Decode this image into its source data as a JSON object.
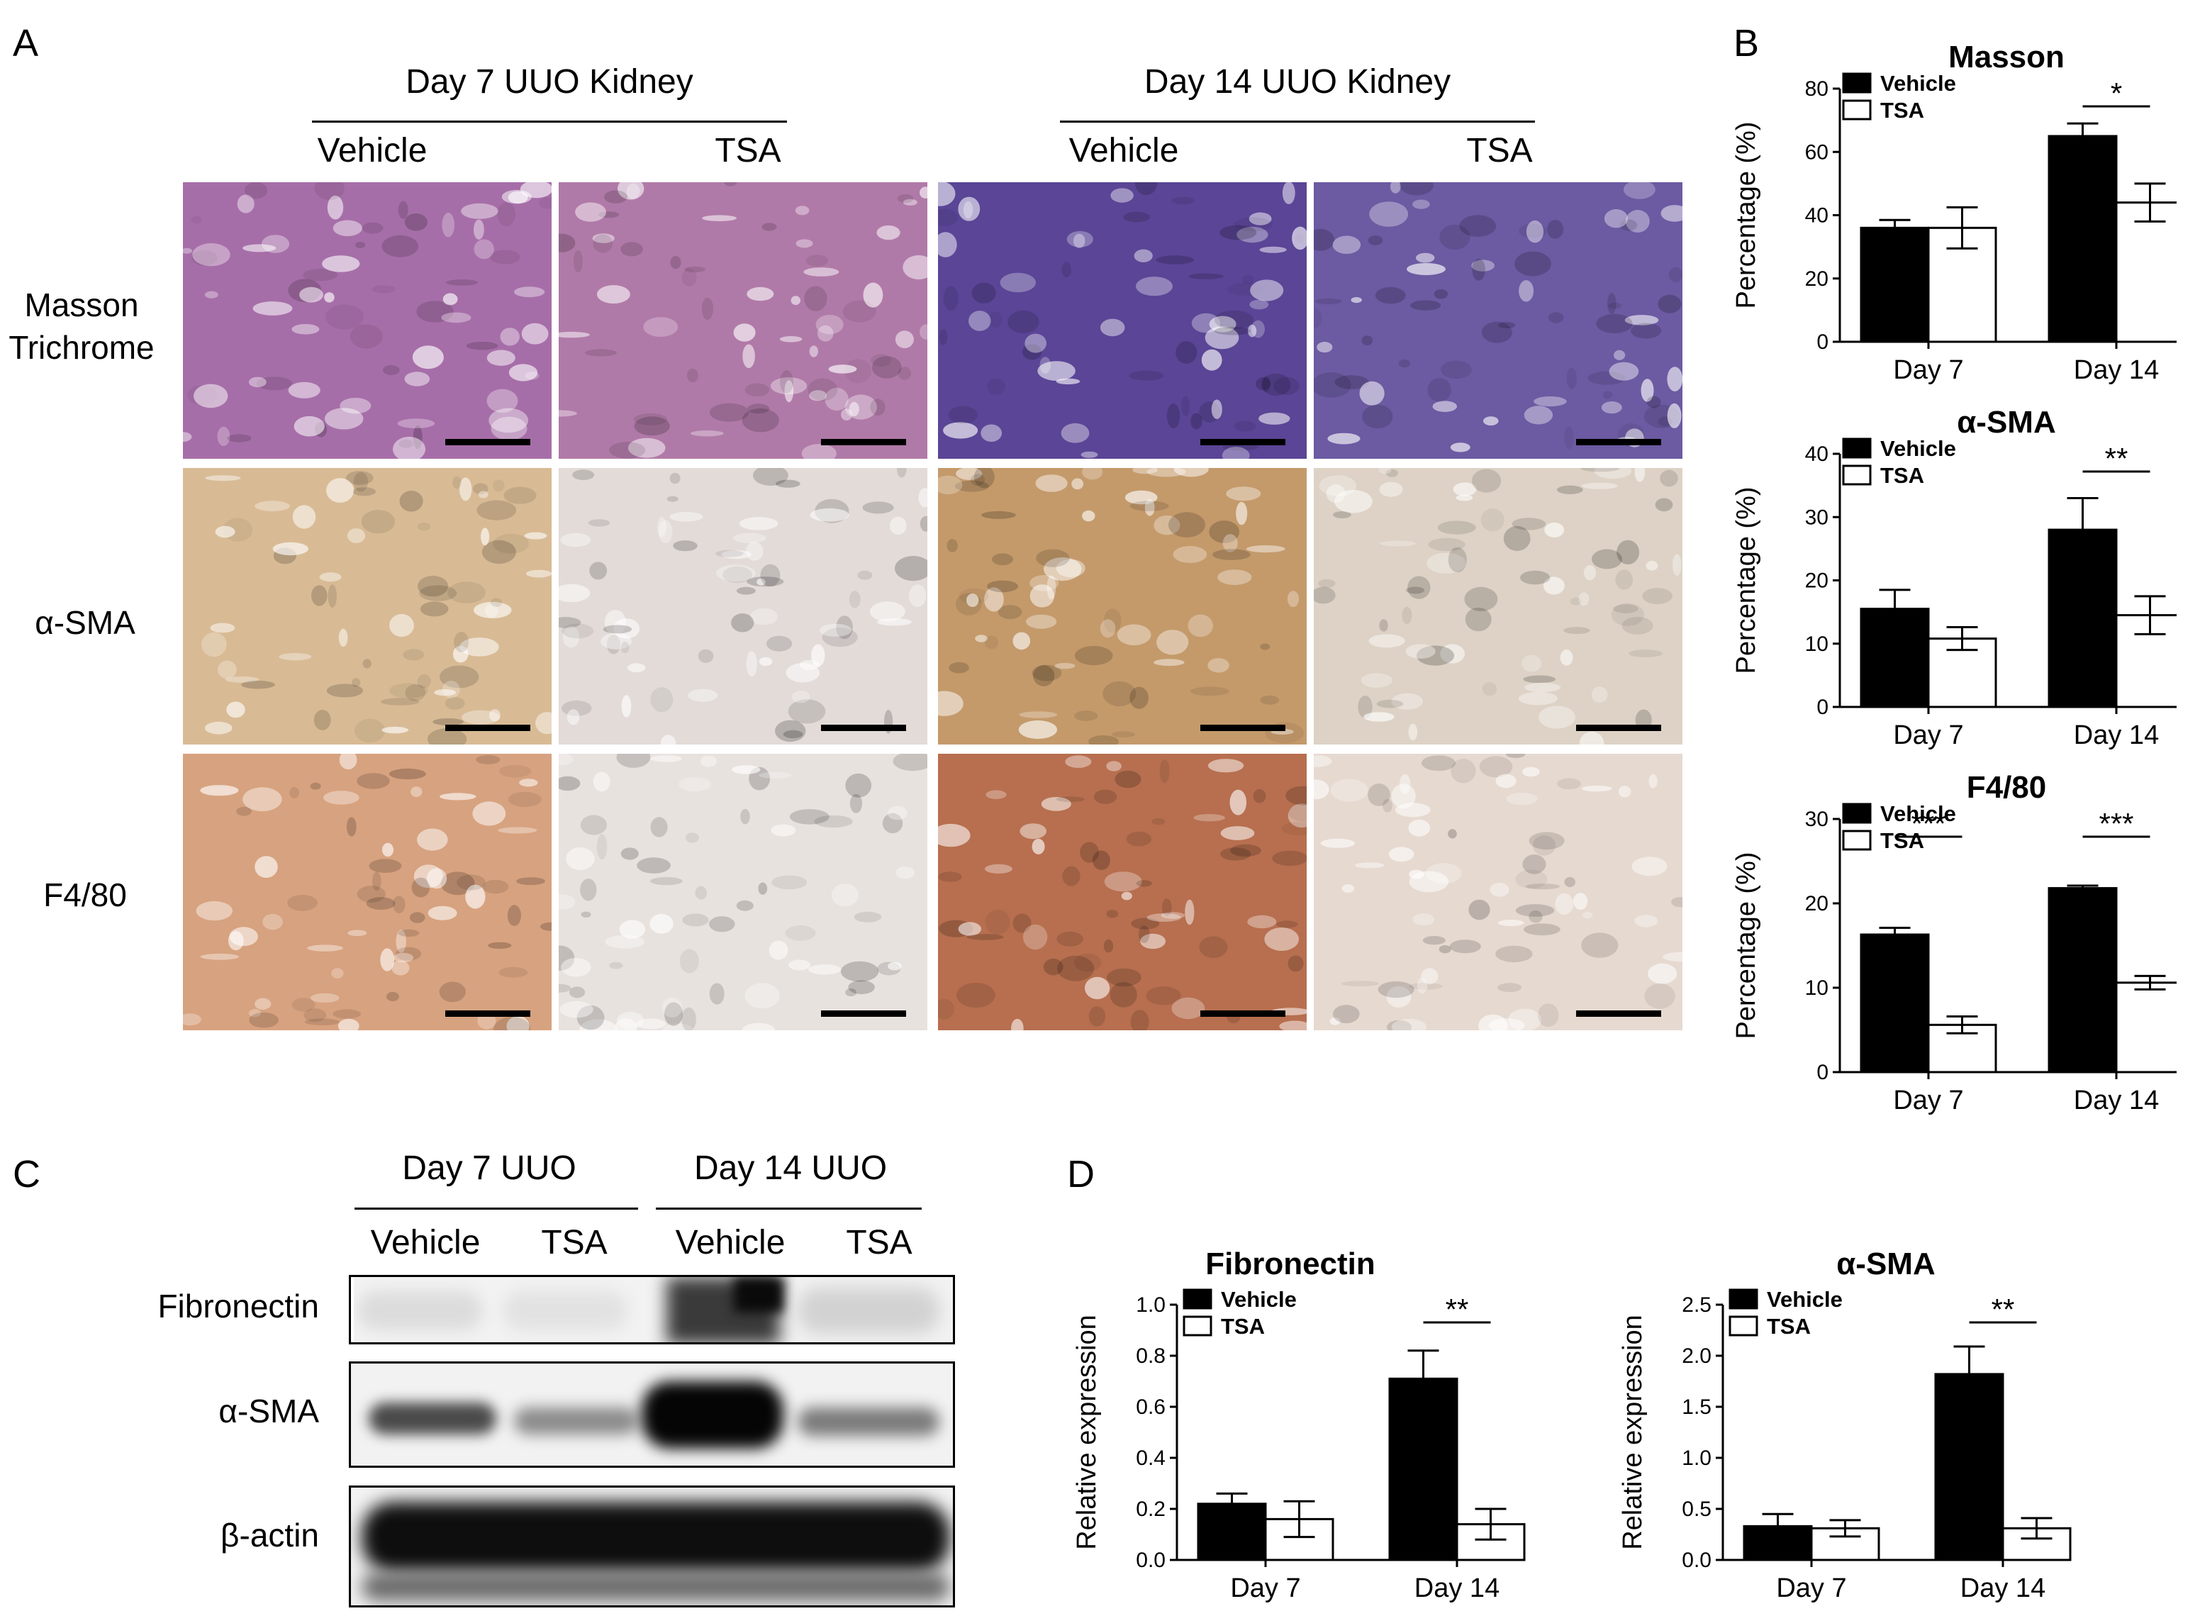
{
  "panels": {
    "A": {
      "letter": "A",
      "group_headers": [
        "Day 7 UUO Kidney",
        "Day 14 UUO Kidney"
      ],
      "column_headers": [
        "Vehicle",
        "TSA",
        "Vehicle",
        "TSA"
      ],
      "row_labels": [
        {
          "line1": "Masson",
          "line2": "Trichrome"
        },
        {
          "line1": "α-SMA",
          "line2": ""
        },
        {
          "line1": "F4/80",
          "line2": ""
        }
      ],
      "tile_colors": {
        "masson": [
          "#a66ea8",
          "#b07aa8",
          "#5a4596",
          "#6c5aa2"
        ],
        "asma": [
          "#d8bb95",
          "#e2dbd8",
          "#c49a6b",
          "#ddd2c5"
        ],
        "f480": [
          "#d7a27f",
          "#e8e2de",
          "#b76f4f",
          "#e6d9d0"
        ]
      }
    },
    "B": {
      "letter": "B"
    },
    "C": {
      "letter": "C",
      "group_headers": [
        "Day 7 UUO",
        "Day 14 UUO"
      ],
      "column_headers": [
        "Vehicle",
        "TSA",
        "Vehicle",
        "TSA"
      ],
      "blot_labels": [
        "Fibronectin",
        "α-SMA",
        "β-actin"
      ]
    },
    "D": {
      "letter": "D"
    }
  },
  "chart_data": [
    {
      "id": "masson",
      "type": "bar",
      "title": "Masson",
      "ylabel": "Percentage (%)",
      "ylim": [
        0,
        80
      ],
      "yticks": [
        0,
        20,
        40,
        60,
        80
      ],
      "categories": [
        "Day 7",
        "Day 14"
      ],
      "series": [
        {
          "name": "Vehicle",
          "values": [
            36,
            65
          ],
          "errors": [
            2.5,
            4
          ],
          "color": "#000000"
        },
        {
          "name": "TSA",
          "values": [
            36,
            44
          ],
          "errors": [
            6.5,
            6
          ],
          "color": "#ffffff"
        }
      ],
      "significance": [
        {
          "category": "Day 14",
          "label": "*"
        }
      ],
      "legend": "top-left"
    },
    {
      "id": "asma_ihc",
      "type": "bar",
      "title": "α-SMA",
      "ylabel": "Percentage (%)",
      "ylim": [
        0,
        40
      ],
      "yticks": [
        0,
        10,
        20,
        30,
        40
      ],
      "categories": [
        "Day 7",
        "Day 14"
      ],
      "series": [
        {
          "name": "Vehicle",
          "values": [
            15.5,
            28
          ],
          "errors": [
            3,
            5
          ],
          "color": "#000000"
        },
        {
          "name": "TSA",
          "values": [
            10.8,
            14.5
          ],
          "errors": [
            1.8,
            3
          ],
          "color": "#ffffff"
        }
      ],
      "significance": [
        {
          "category": "Day 14",
          "label": "**"
        }
      ],
      "legend": "top-left"
    },
    {
      "id": "f480",
      "type": "bar",
      "title": "F4/80",
      "ylabel": "Percentage (%)",
      "ylim": [
        0,
        30
      ],
      "yticks": [
        0,
        10,
        20,
        30
      ],
      "categories": [
        "Day 7",
        "Day 14"
      ],
      "series": [
        {
          "name": "Vehicle",
          "values": [
            16.3,
            21.8
          ],
          "errors": [
            0.8,
            0.3
          ],
          "color": "#000000"
        },
        {
          "name": "TSA",
          "values": [
            5.6,
            10.6
          ],
          "errors": [
            1,
            0.8
          ],
          "color": "#ffffff"
        }
      ],
      "significance": [
        {
          "category": "Day 7",
          "label": "***"
        },
        {
          "category": "Day 14",
          "label": "***"
        }
      ],
      "legend": "top-left"
    },
    {
      "id": "fibronectin_wb",
      "type": "bar",
      "title": "Fibronectin",
      "ylabel": "Relative expression",
      "ylim": [
        0,
        1.0
      ],
      "yticks": [
        0.0,
        0.2,
        0.4,
        0.6,
        0.8,
        1.0
      ],
      "ytick_labels": [
        "0.0",
        "0.2",
        "0.4",
        "0.6",
        "0.8",
        "1.0"
      ],
      "categories": [
        "Day 7",
        "Day 14"
      ],
      "series": [
        {
          "name": "Vehicle",
          "values": [
            0.22,
            0.71
          ],
          "errors": [
            0.04,
            0.11
          ],
          "color": "#000000"
        },
        {
          "name": "TSA",
          "values": [
            0.16,
            0.14
          ],
          "errors": [
            0.07,
            0.06
          ],
          "color": "#ffffff"
        }
      ],
      "significance": [
        {
          "category": "Day 14",
          "label": "**"
        }
      ],
      "legend": "top-left"
    },
    {
      "id": "asma_wb",
      "type": "bar",
      "title": "α-SMA",
      "ylabel": "Relative expression",
      "ylim": [
        0,
        2.5
      ],
      "yticks": [
        0.0,
        0.5,
        1.0,
        1.5,
        2.0,
        2.5
      ],
      "ytick_labels": [
        "0.0",
        "0.5",
        "1.0",
        "1.5",
        "2.0",
        "2.5"
      ],
      "categories": [
        "Day 7",
        "Day 14"
      ],
      "series": [
        {
          "name": "Vehicle",
          "values": [
            0.33,
            1.82
          ],
          "errors": [
            0.12,
            0.27
          ],
          "color": "#000000"
        },
        {
          "name": "TSA",
          "values": [
            0.31,
            0.31
          ],
          "errors": [
            0.08,
            0.1
          ],
          "color": "#ffffff"
        }
      ],
      "significance": [
        {
          "category": "Day 14",
          "label": "**"
        }
      ],
      "legend": "top-left"
    }
  ]
}
